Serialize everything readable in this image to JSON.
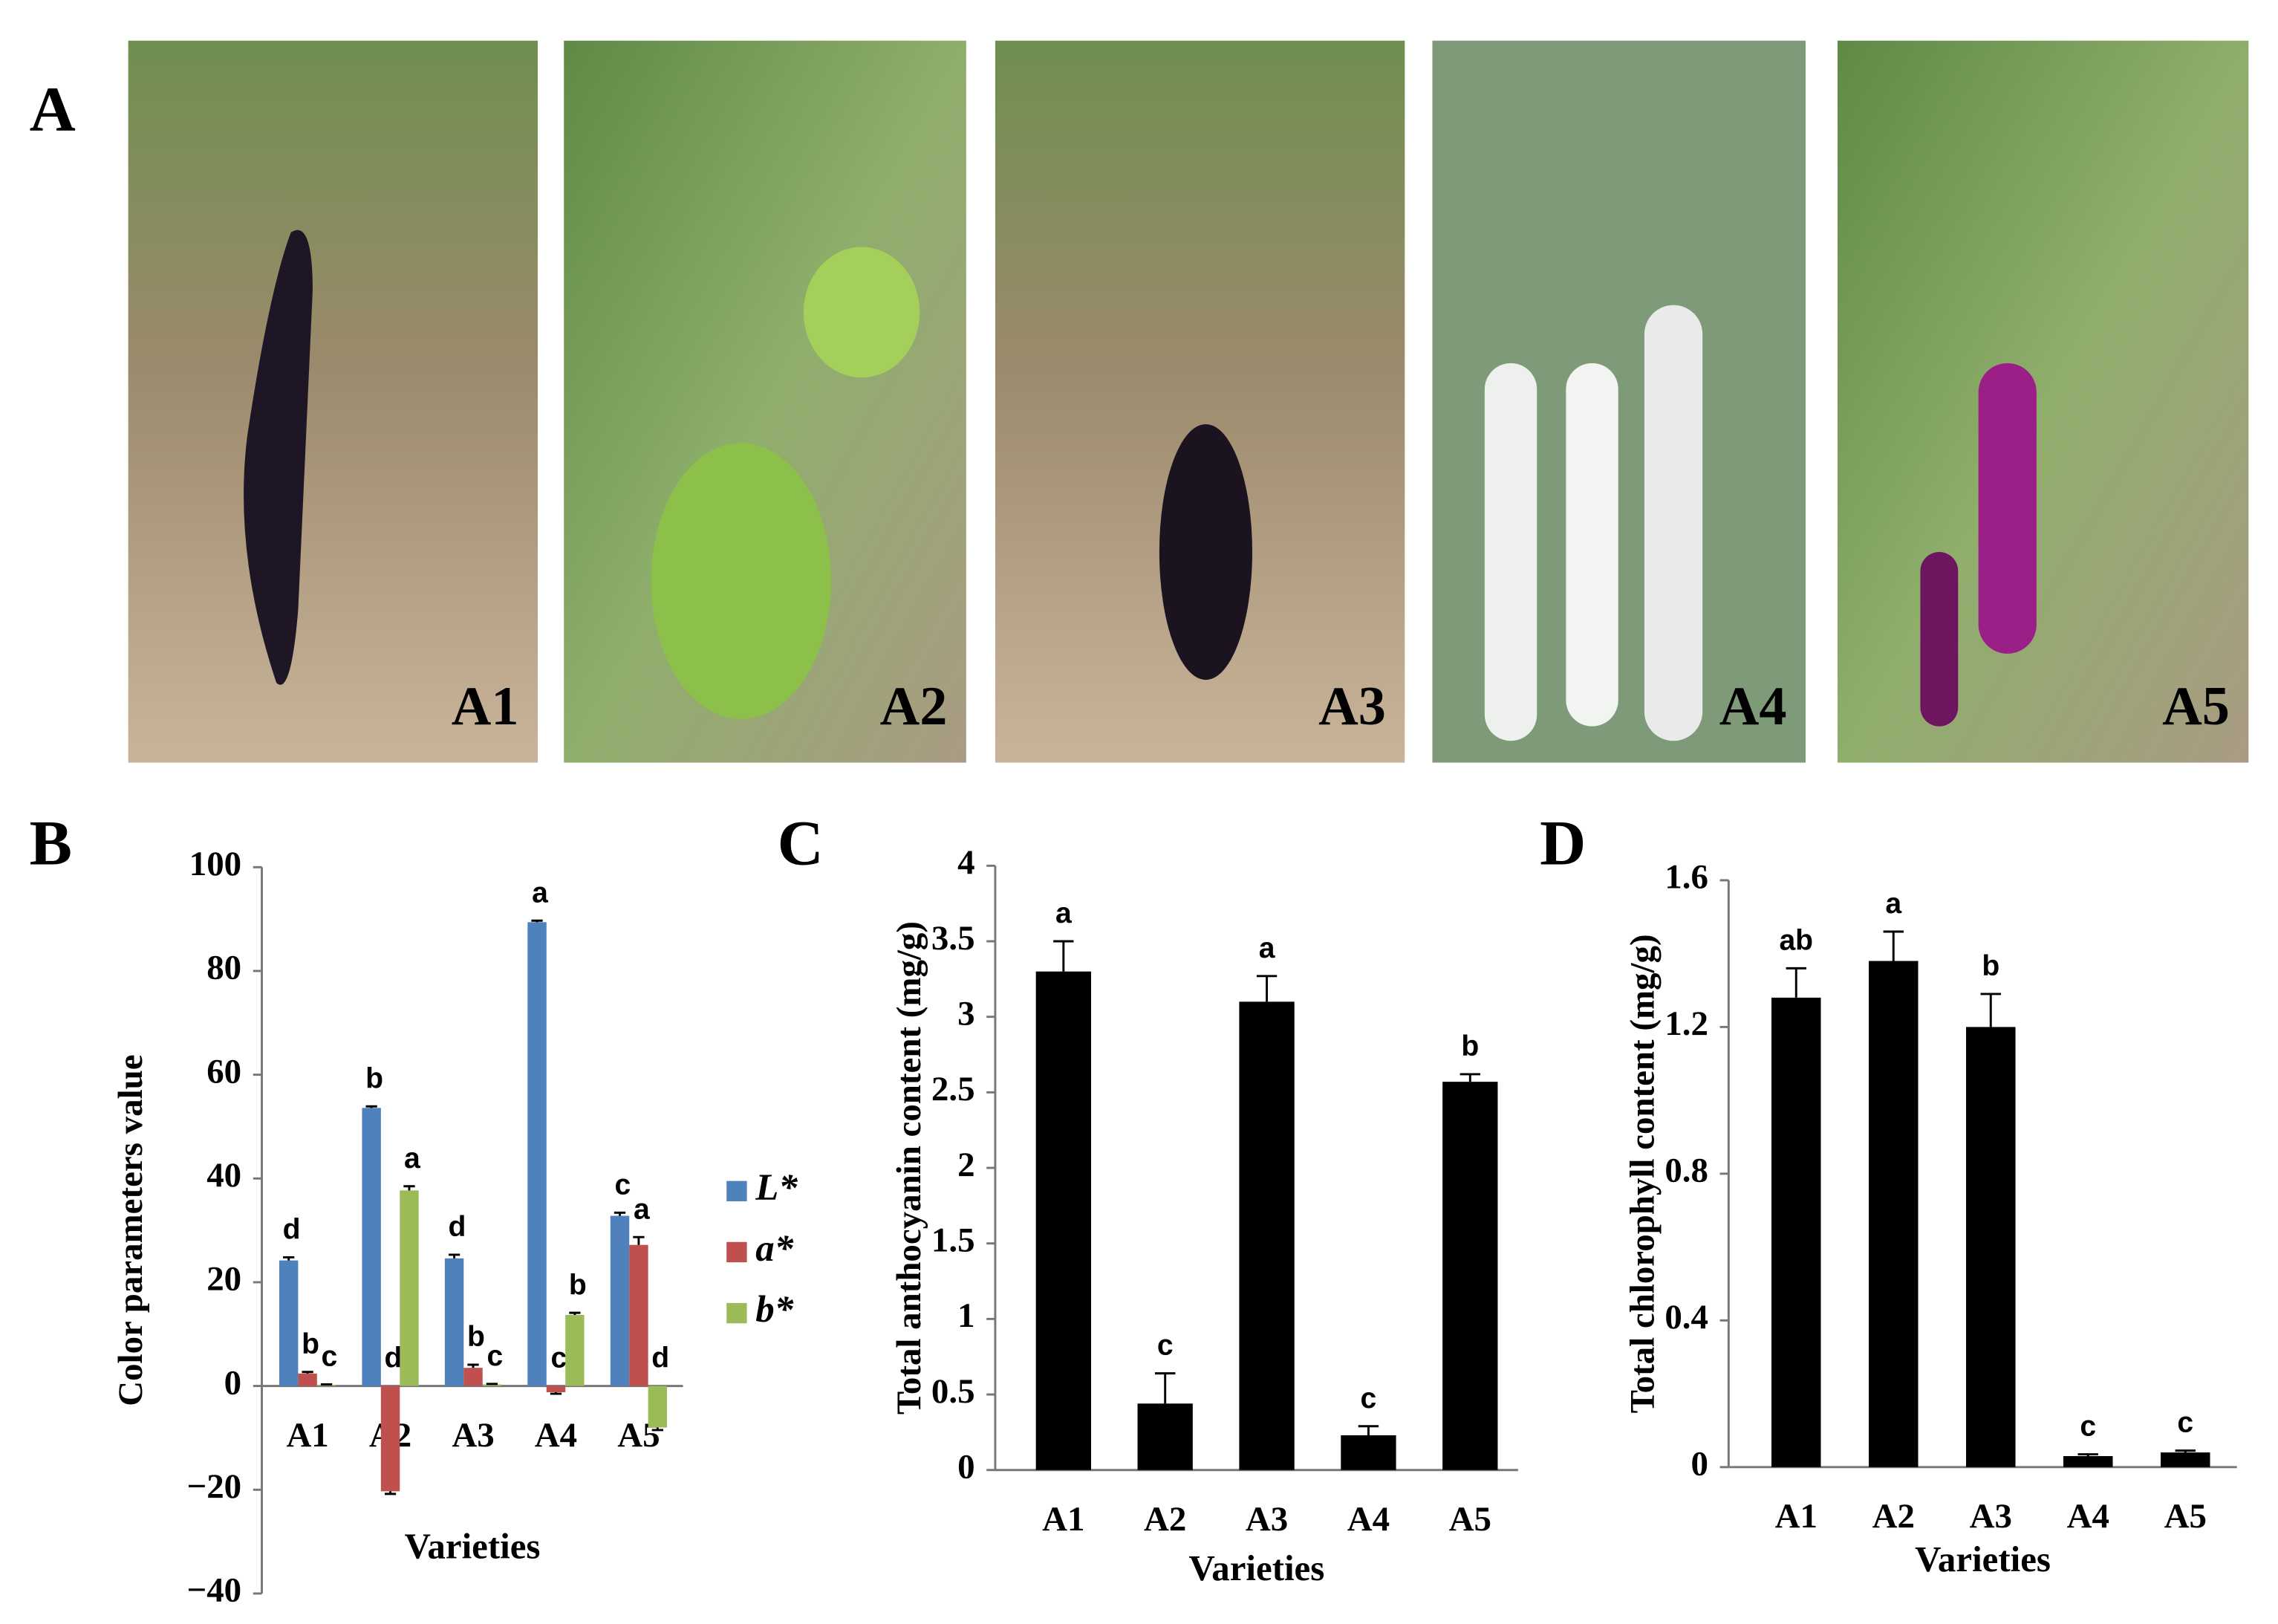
{
  "photos": {
    "panel": "A",
    "labels": [
      "A1",
      "A2",
      "A3",
      "A4",
      "A5"
    ]
  },
  "chart_data": [
    {
      "type": "bar",
      "panel": "B",
      "x_label": "Varieties",
      "y_label": "Color parameters value",
      "categories": [
        "A1",
        "A2",
        "A3",
        "A4",
        "A5"
      ],
      "series": [
        {
          "name": "L*",
          "color": "#4f81bd",
          "values": [
            24.2,
            53.6,
            24.6,
            89.4,
            32.8
          ],
          "errors": [
            0.6,
            0.3,
            0.7,
            0.3,
            0.6
          ],
          "letters": [
            "d",
            "b",
            "d",
            "a",
            "c"
          ]
        },
        {
          "name": "a*",
          "color": "#c0504d",
          "values": [
            2.4,
            -20.3,
            3.5,
            -1.2,
            27.2
          ],
          "errors": [
            0.3,
            0.5,
            0.6,
            0.3,
            1.5
          ],
          "letters": [
            "b",
            "d",
            "b",
            "c",
            "a"
          ]
        },
        {
          "name": "b*",
          "color": "#9bbb59",
          "values": [
            0.2,
            37.7,
            0.3,
            13.7,
            -8
          ],
          "errors": [
            0.1,
            0.8,
            0.1,
            0.4,
            0.5
          ],
          "letters": [
            "c",
            "a",
            "c",
            "b",
            "d"
          ]
        }
      ],
      "ylim": [
        -40,
        100
      ],
      "yticks": [
        {
          "value": -40,
          "label": "−40"
        },
        {
          "value": -20,
          "label": "−20"
        },
        0,
        20,
        40,
        60,
        80,
        100
      ],
      "legend": "right"
    },
    {
      "type": "bar",
      "panel": "C",
      "x_label": "Varieties",
      "y_label": "Total anthocyanin content (mg/g)",
      "categories": [
        "A1",
        "A2",
        "A3",
        "A4",
        "A5"
      ],
      "series": [
        {
          "name": "Total anthocyanin",
          "color": "#000000",
          "values": [
            3.3,
            0.44,
            3.1,
            0.23,
            2.57
          ],
          "errors": [
            0.2,
            0.2,
            0.17,
            0.06,
            0.05
          ],
          "letters": [
            "a",
            "c",
            "a",
            "c",
            "b"
          ]
        }
      ],
      "ylim": [
        0,
        4
      ],
      "yticks": [
        0,
        0.5,
        1,
        1.5,
        2,
        2.5,
        3,
        3.5,
        4
      ]
    },
    {
      "type": "bar",
      "panel": "D",
      "x_label": "Varieties",
      "y_label": "Total chlorophyll content (mg/g)",
      "categories": [
        "A1",
        "A2",
        "A3",
        "A4",
        "A5"
      ],
      "series": [
        {
          "name": "Total chlorophyll",
          "color": "#000000",
          "values": [
            1.28,
            1.38,
            1.2,
            0.03,
            0.04
          ],
          "errors": [
            0.08,
            0.08,
            0.09,
            0.005,
            0.005
          ],
          "letters": [
            "ab",
            "a",
            "b",
            "c",
            "c"
          ]
        }
      ],
      "ylim": [
        0,
        1.6
      ],
      "yticks": [
        0,
        0.4,
        0.8,
        1.2,
        1.6
      ]
    }
  ]
}
